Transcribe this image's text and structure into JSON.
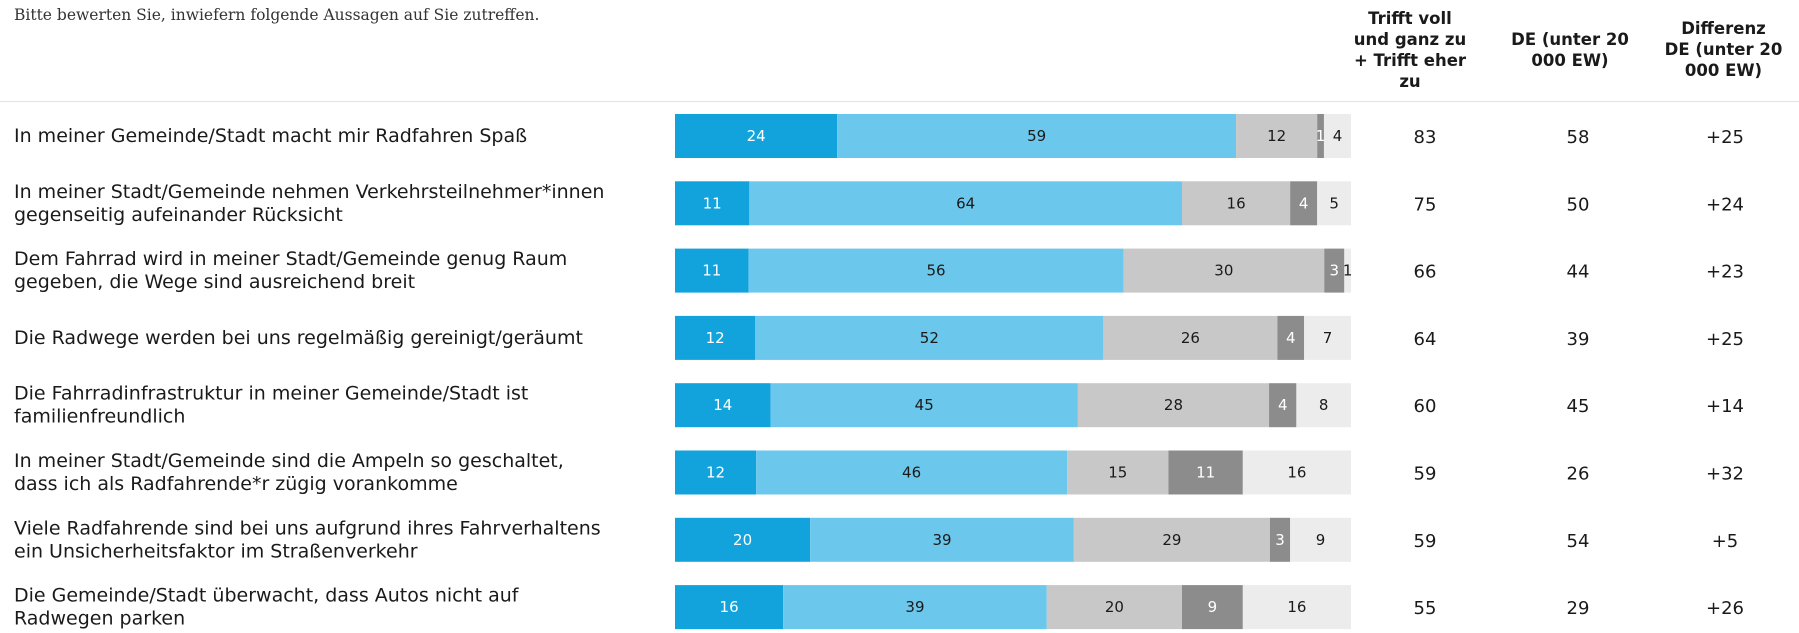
{
  "question": "Bitte bewerten Sie, inwiefern folgende Aussagen auf Sie zutreffen.",
  "columns": {
    "agree": [
      "Trifft voll",
      "und ganz zu",
      "+ Trifft eher",
      "zu"
    ],
    "de": [
      "DE (unter 20",
      "000 EW)"
    ],
    "diff": [
      "Differenz",
      "DE (unter 20",
      "000 EW)"
    ]
  },
  "colors": {
    "seg1": "#12a3dc",
    "seg2": "#6cc7ec",
    "seg3": "#c8c8c8",
    "seg4": "#8c8c8c",
    "seg5": "#ececec"
  },
  "chart_data": {
    "type": "bar",
    "stacked": true,
    "orientation": "horizontal",
    "categories": [
      [
        "In meiner Gemeinde/Stadt macht mir Radfahren Spaß"
      ],
      [
        "In meiner Stadt/Gemeinde nehmen Verkehrsteilnehmer*innen",
        "gegenseitig aufeinander Rücksicht"
      ],
      [
        "Dem Fahrrad wird in meiner Stadt/Gemeinde genug Raum",
        "gegeben, die Wege sind ausreichend breit"
      ],
      [
        "Die Radwege werden bei uns regelmäßig gereinigt/geräumt"
      ],
      [
        "Die Fahrradinfrastruktur in meiner Gemeinde/Stadt ist",
        "familienfreundlich"
      ],
      [
        "In meiner Stadt/Gemeinde sind die Ampeln so geschaltet,",
        "dass ich als Radfahrende*r zügig vorankomme"
      ],
      [
        "Viele Radfahrende sind bei uns aufgrund ihres Fahrverhaltens",
        "ein Unsicherheitsfaktor im Straßenverkehr"
      ],
      [
        "Die Gemeinde/Stadt überwacht, dass Autos nicht auf",
        "Radwegen parken"
      ]
    ],
    "series": [
      {
        "values": [
          24,
          11,
          11,
          12,
          14,
          12,
          20,
          16
        ]
      },
      {
        "values": [
          59,
          64,
          56,
          52,
          45,
          46,
          39,
          39
        ]
      },
      {
        "values": [
          12,
          16,
          30,
          26,
          28,
          15,
          29,
          20
        ]
      },
      {
        "values": [
          1,
          4,
          3,
          4,
          4,
          11,
          3,
          9
        ]
      },
      {
        "values": [
          4,
          5,
          1,
          7,
          8,
          16,
          9,
          16
        ]
      }
    ],
    "bar_labels": [
      [
        "24",
        "59",
        "12",
        "1",
        "4"
      ],
      [
        "11",
        "64",
        "16",
        "4",
        "5"
      ],
      [
        "11",
        "56",
        "30",
        "3",
        "1"
      ],
      [
        "12",
        "52",
        "26",
        "4",
        "7"
      ],
      [
        "14",
        "45",
        "28",
        "4",
        "8"
      ],
      [
        "12",
        "46",
        "15",
        "11",
        "16"
      ],
      [
        "20",
        "39",
        "29",
        "3",
        "9"
      ],
      [
        "16",
        "39",
        "20",
        "9",
        "16"
      ]
    ],
    "agree_total": [
      "83",
      "75",
      "66",
      "64",
      "60",
      "59",
      "59",
      "55"
    ],
    "de_values": [
      "58",
      "50",
      "44",
      "39",
      "45",
      "26",
      "54",
      "29"
    ],
    "diff_values": [
      "+25",
      "+24",
      "+23",
      "+25",
      "+14",
      "+32",
      "+5",
      "+26"
    ]
  }
}
